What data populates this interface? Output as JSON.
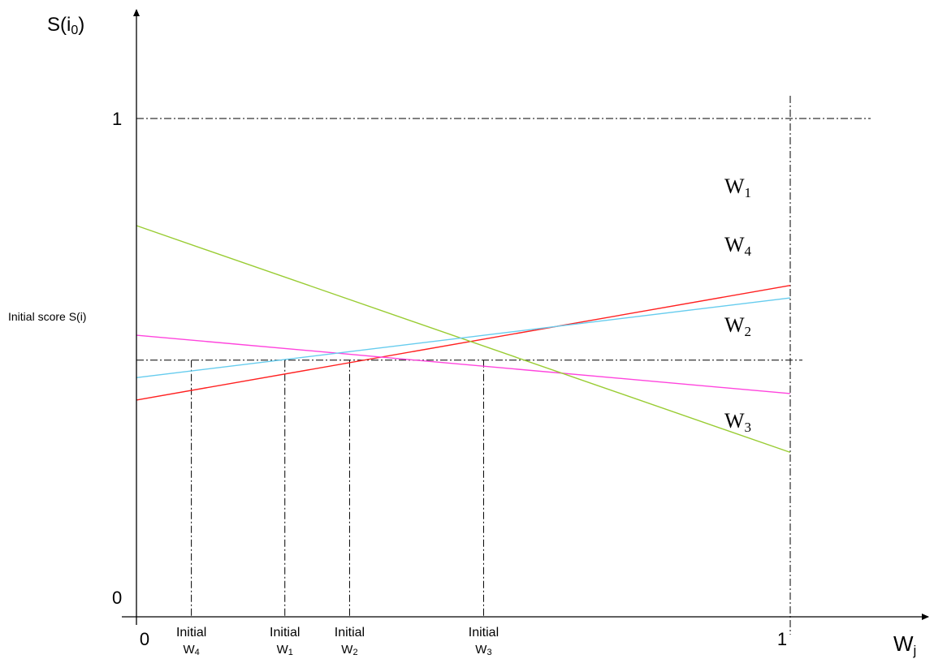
{
  "chart_data": {
    "type": "line",
    "xlabel_main": "W",
    "xlabel_sub": "j",
    "ylabel_main": "S(i",
    "ylabel_sub": "0",
    "ylabel_close": ")",
    "xlim": [
      0,
      1
    ],
    "ylim": [
      0,
      1
    ],
    "x_ticks": [
      {
        "value": 0,
        "label": "0"
      },
      {
        "value": 1,
        "label": "1"
      }
    ],
    "y_ticks": [
      {
        "value": 0,
        "label": "0"
      },
      {
        "value": 1,
        "label": "1"
      }
    ],
    "reference_line": {
      "y": 0.515,
      "label": "Initial score S(i)"
    },
    "series": [
      {
        "name_main": "W",
        "name_sub": "1",
        "color": "#ff2020",
        "x": [
          0,
          1
        ],
        "y": [
          0.435,
          0.665
        ]
      },
      {
        "name_main": "W",
        "name_sub": "2",
        "color": "#ff44dd",
        "x": [
          0,
          1
        ],
        "y": [
          0.565,
          0.448
        ]
      },
      {
        "name_main": "W",
        "name_sub": "3",
        "color": "#99cc33",
        "x": [
          0,
          1
        ],
        "y": [
          0.785,
          0.33
        ]
      },
      {
        "name_main": "W",
        "name_sub": "4",
        "color": "#66ccee",
        "x": [
          0,
          1
        ],
        "y": [
          0.48,
          0.64
        ]
      }
    ],
    "initial_markers": [
      {
        "x": 0.084,
        "label": "Initial",
        "sub_main": "W",
        "sub_sub": "4"
      },
      {
        "x": 0.227,
        "label": "Initial",
        "sub_main": "W",
        "sub_sub": "1"
      },
      {
        "x": 0.326,
        "label": "Initial",
        "sub_main": "W",
        "sub_sub": "2"
      },
      {
        "x": 0.531,
        "label": "Initial",
        "sub_main": "W",
        "sub_sub": "3"
      }
    ]
  }
}
